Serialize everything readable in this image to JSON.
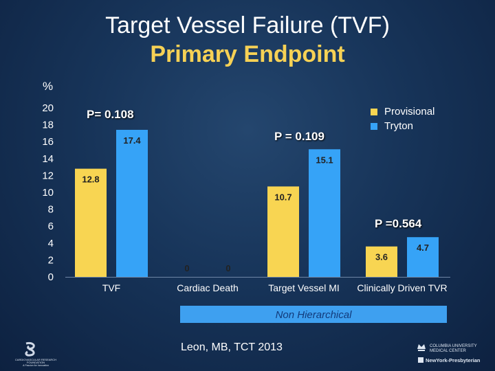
{
  "title": "Target Vessel Failure (TVF)",
  "subtitle": "Primary Endpoint",
  "y_unit": "%",
  "legend": [
    {
      "label": "Provisional",
      "color": "#f8d552"
    },
    {
      "label": "Tryton",
      "color": "#36a3f7"
    }
  ],
  "p_values": [
    "P= 0.108",
    "P = 0.109",
    "P =0.564"
  ],
  "footer": {
    "banner": "Non Hierarchical",
    "citation": "Leon, MB, TCT 2013",
    "logo_left_text": [
      "CARDIOVASCULAR RESEARCH",
      "FOUNDATION",
      "A Passion for Innovation"
    ],
    "logo_right_text": [
      "COLUMBIA UNIVERSITY",
      "MEDICAL CENTER",
      "NewYork-Presbyterian"
    ]
  },
  "chart_data": {
    "type": "bar",
    "categories": [
      "TVF",
      "Cardiac Death",
      "Target Vessel MI",
      "Clinically Driven TVR"
    ],
    "series": [
      {
        "name": "Provisional",
        "values": [
          12.8,
          0,
          10.7,
          3.6
        ],
        "labels": [
          "12.8",
          "0",
          "10.7",
          "3.6"
        ],
        "color": "#f8d552"
      },
      {
        "name": "Tryton",
        "values": [
          17.4,
          0,
          15.1,
          4.7
        ],
        "labels": [
          "17.4",
          "0",
          "15.1",
          "4.7"
        ],
        "color": "#36a3f7"
      }
    ],
    "ylim": [
      0,
      20
    ],
    "yticks": [
      0,
      2,
      4,
      6,
      8,
      10,
      12,
      14,
      16,
      18,
      20
    ],
    "grid": false,
    "legend_position": "top-right"
  }
}
